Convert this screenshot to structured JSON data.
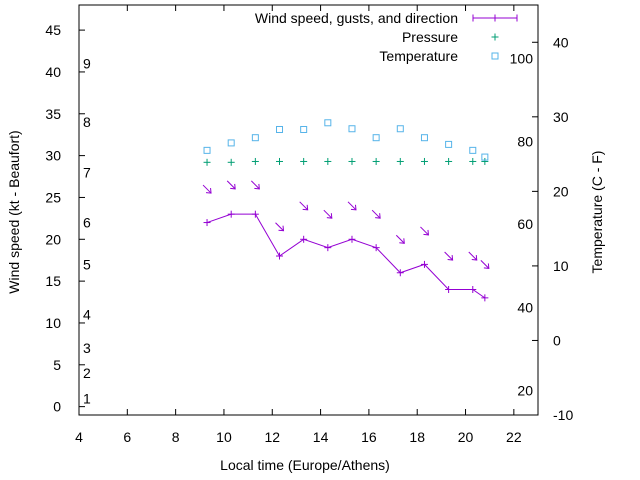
{
  "chart_data": {
    "type": "line",
    "xlabel": "Local time (Europe/Athens)",
    "ylabel": "Wind speed (kt - Beaufort)",
    "y2label": "Temperature (C - F)",
    "xlim": [
      4,
      23
    ],
    "ylim": [
      -1,
      48
    ],
    "y2lim": [
      -10,
      45
    ],
    "x_ticks": [
      4,
      6,
      8,
      10,
      12,
      14,
      16,
      18,
      20,
      22
    ],
    "y_ticks": [
      0,
      5,
      10,
      15,
      20,
      25,
      30,
      35,
      40,
      45
    ],
    "y2_ticks": [
      -10,
      0,
      10,
      20,
      30,
      40
    ],
    "beaufort_ticks": [
      {
        "label": "1",
        "kt": 1
      },
      {
        "label": "2",
        "kt": 4
      },
      {
        "label": "3",
        "kt": 7
      },
      {
        "label": "4",
        "kt": 11
      },
      {
        "label": "5",
        "kt": 17
      },
      {
        "label": "6",
        "kt": 22
      },
      {
        "label": "7",
        "kt": 28
      },
      {
        "label": "8",
        "kt": 34
      },
      {
        "label": "9",
        "kt": 41
      }
    ],
    "fahrenheit_ticks": [
      {
        "label": "20",
        "c": -6.7
      },
      {
        "label": "40",
        "c": 4.4
      },
      {
        "label": "60",
        "c": 15.6
      },
      {
        "label": "80",
        "c": 26.7
      },
      {
        "label": "100",
        "c": 37.8
      }
    ],
    "legend_position": "top-right",
    "grid": false,
    "series": [
      {
        "name": "Wind speed, gusts, and direction",
        "axis": "left",
        "color": "#9400d3",
        "marker": "+",
        "x": [
          9.3,
          10.3,
          11.3,
          12.3,
          13.3,
          14.3,
          15.3,
          16.3,
          17.3,
          18.3,
          19.3,
          20.3,
          20.8
        ],
        "y": [
          22,
          23,
          23,
          18,
          20,
          19,
          20,
          19,
          16,
          17,
          14,
          14,
          13
        ],
        "direction_arrows": [
          {
            "x": 9.3,
            "y": 26
          },
          {
            "x": 10.3,
            "y": 26.5
          },
          {
            "x": 11.3,
            "y": 26.5
          },
          {
            "x": 12.3,
            "y": 21.5
          },
          {
            "x": 13.3,
            "y": 24
          },
          {
            "x": 14.3,
            "y": 23
          },
          {
            "x": 15.3,
            "y": 24
          },
          {
            "x": 16.3,
            "y": 23
          },
          {
            "x": 17.3,
            "y": 20
          },
          {
            "x": 18.3,
            "y": 21
          },
          {
            "x": 19.3,
            "y": 18
          },
          {
            "x": 20.3,
            "y": 18
          },
          {
            "x": 20.8,
            "y": 17
          }
        ]
      },
      {
        "name": "Pressure",
        "axis": "left",
        "color": "#009e73",
        "marker": "+",
        "x": [
          9.3,
          10.3,
          11.3,
          12.3,
          13.3,
          14.3,
          15.3,
          16.3,
          17.3,
          18.3,
          19.3,
          20.3,
          20.8
        ],
        "y": [
          29.2,
          29.2,
          29.3,
          29.3,
          29.3,
          29.3,
          29.3,
          29.3,
          29.3,
          29.3,
          29.3,
          29.3,
          29.3
        ]
      },
      {
        "name": "Temperature",
        "axis": "right",
        "color": "#56b4e9",
        "marker": "square",
        "x": [
          9.3,
          10.3,
          11.3,
          12.3,
          13.3,
          14.3,
          15.3,
          16.3,
          17.3,
          18.3,
          19.3,
          20.3,
          20.8
        ],
        "y": [
          25.5,
          26.5,
          27.2,
          28.3,
          28.3,
          29.2,
          28.4,
          27.2,
          28.4,
          27.2,
          26.3,
          25.5,
          24.6
        ]
      }
    ]
  }
}
